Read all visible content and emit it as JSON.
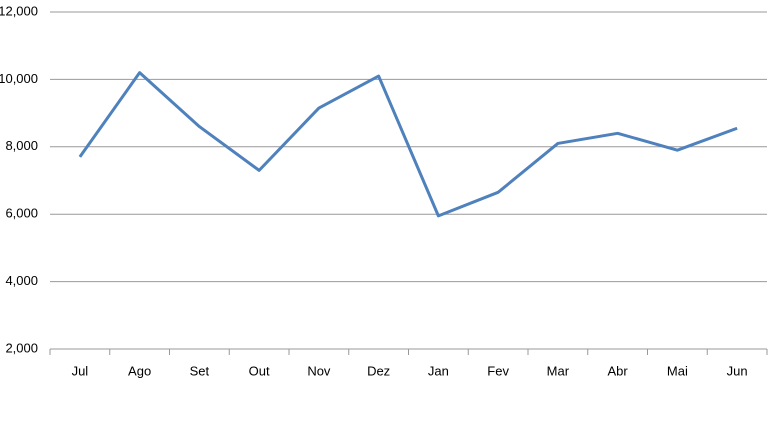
{
  "chart_data": {
    "type": "line",
    "categories": [
      "Jul",
      "Ago",
      "Set",
      "Out",
      "Nov",
      "Dez",
      "Jan",
      "Fev",
      "Mar",
      "Abr",
      "Mai",
      "Jun"
    ],
    "series": [
      {
        "color": "#4f81bd",
        "values": [
          7700,
          10200,
          8600,
          7300,
          9150,
          10100,
          5950,
          6650,
          8100,
          8400,
          7900,
          8550
        ]
      }
    ],
    "ylim": [
      2000,
      12000
    ],
    "yticks": [
      {
        "value": 2000,
        "label": "2,000"
      },
      {
        "value": 4000,
        "label": "4,000"
      },
      {
        "value": 6000,
        "label": "6,000"
      },
      {
        "value": 8000,
        "label": "8,000"
      },
      {
        "value": 10000,
        "label": "10,000"
      },
      {
        "value": 12000,
        "label": "12,000"
      }
    ],
    "grid": true
  }
}
